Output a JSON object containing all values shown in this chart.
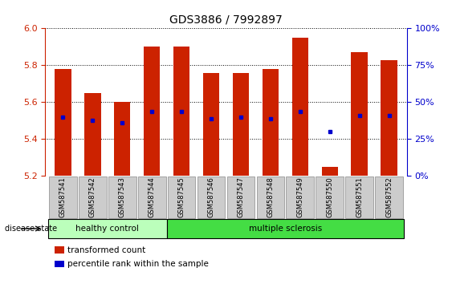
{
  "title": "GDS3886 / 7992897",
  "samples": [
    "GSM587541",
    "GSM587542",
    "GSM587543",
    "GSM587544",
    "GSM587545",
    "GSM587546",
    "GSM587547",
    "GSM587548",
    "GSM587549",
    "GSM587550",
    "GSM587551",
    "GSM587552"
  ],
  "bar_tops": [
    5.78,
    5.65,
    5.6,
    5.9,
    5.9,
    5.76,
    5.76,
    5.78,
    5.95,
    5.25,
    5.87,
    5.83
  ],
  "bar_base": 5.2,
  "blue_dot_y": [
    5.52,
    5.5,
    5.49,
    5.55,
    5.55,
    5.51,
    5.52,
    5.51,
    5.55,
    5.44,
    5.53,
    5.53
  ],
  "ylim": [
    5.2,
    6.0
  ],
  "yticks_left": [
    5.2,
    5.4,
    5.6,
    5.8,
    6.0
  ],
  "right_yticks": [
    0,
    25,
    50,
    75,
    100
  ],
  "bar_color": "#cc2200",
  "dot_color": "#0000cc",
  "healthy_count": 4,
  "ms_count": 8,
  "healthy_color": "#bbffbb",
  "ms_color": "#44dd44",
  "healthy_label": "healthy control",
  "ms_label": "multiple sclerosis",
  "disease_state_label": "disease state",
  "legend1": "transformed count",
  "legend2": "percentile rank within the sample",
  "left_tick_color": "#cc2200",
  "right_tick_color": "#0000cc",
  "bar_width": 0.55,
  "background_color": "#ffffff",
  "label_bg": "#cccccc",
  "title_fontsize": 10,
  "label_fontsize": 6.0,
  "disease_fontsize": 7.5,
  "legend_fontsize": 7.5
}
